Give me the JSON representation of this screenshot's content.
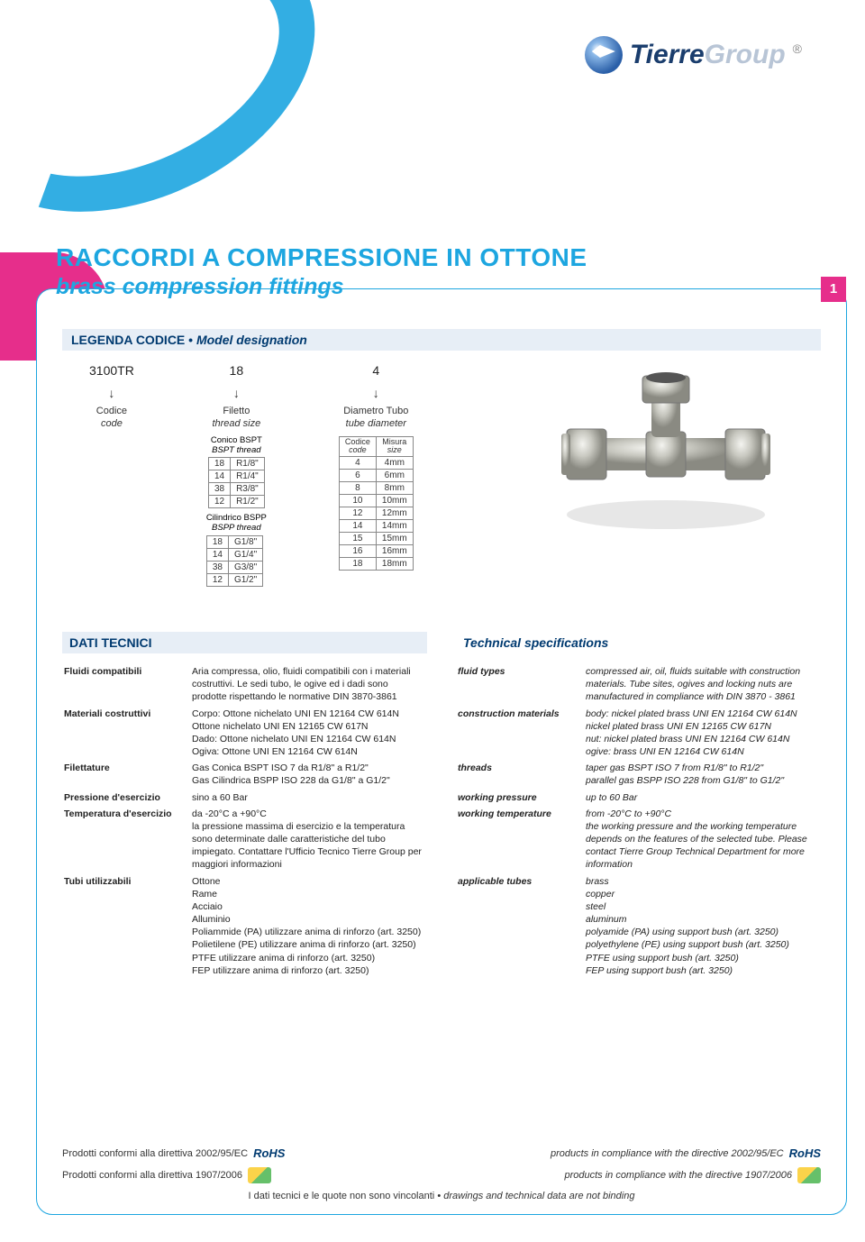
{
  "brand": {
    "name": "Tierre",
    "suffix": "Group",
    "registered": "®"
  },
  "page_number": "1",
  "title": {
    "main": "RACCORDI A COMPRESSIONE IN OTTONE",
    "sub": "brass compression fittings"
  },
  "legend": {
    "heading": "LEGENDA CODICE",
    "heading_en": "Model designation",
    "example": {
      "code": "3100TR",
      "thread": "18",
      "tube": "4"
    },
    "labels": {
      "codice": "Codice",
      "codice_en": "code",
      "filetto": "Filetto",
      "filetto_en": "thread size",
      "diametro": "Diametro Tubo",
      "diametro_en": "tube diameter"
    },
    "bspt": {
      "caption": "Conico BSPT",
      "caption_en": "BSPT thread",
      "rows": [
        [
          "18",
          "R1/8\""
        ],
        [
          "14",
          "R1/4\""
        ],
        [
          "38",
          "R3/8\""
        ],
        [
          "12",
          "R1/2\""
        ]
      ]
    },
    "bspp": {
      "caption": "Cilindrico BSPP",
      "caption_en": "BSPP thread",
      "rows": [
        [
          "18",
          "G1/8\""
        ],
        [
          "14",
          "G1/4\""
        ],
        [
          "38",
          "G3/8\""
        ],
        [
          "12",
          "G1/2\""
        ]
      ]
    },
    "tube_table": {
      "h1": "Codice",
      "h1_en": "code",
      "h2": "Misura",
      "h2_en": "size",
      "rows": [
        [
          "4",
          "4mm"
        ],
        [
          "6",
          "6mm"
        ],
        [
          "8",
          "8mm"
        ],
        [
          "10",
          "10mm"
        ],
        [
          "12",
          "12mm"
        ],
        [
          "14",
          "14mm"
        ],
        [
          "15",
          "15mm"
        ],
        [
          "16",
          "16mm"
        ],
        [
          "18",
          "18mm"
        ]
      ]
    }
  },
  "specs_it": {
    "heading": "DATI TECNICI",
    "rows": [
      [
        "Fluidi compatibili",
        "Aria compressa, olio, fluidi compatibili con i materiali costruttivi. Le sedi tubo, le ogive ed i dadi sono prodotte rispettando le normative DIN 3870-3861"
      ],
      [
        "Materiali costruttivi",
        "Corpo: Ottone nichelato UNI EN 12164 CW 614N\nOttone nichelato UNI EN 12165 CW 617N\nDado: Ottone nichelato UNI EN 12164 CW 614N\nOgiva: Ottone UNI EN 12164 CW 614N"
      ],
      [
        "Filettature",
        "Gas Conica BSPT ISO 7 da R1/8\" a R1/2\"\nGas Cilindrica BSPP ISO 228 da G1/8\" a G1/2\""
      ],
      [
        "Pressione d'esercizio",
        "sino a 60 Bar"
      ],
      [
        "Temperatura d'esercizio",
        "da -20°C a +90°C\nla pressione massima di esercizio e la temperatura sono determinate dalle caratteristiche del tubo impiegato. Contattare l'Ufficio Tecnico Tierre Group per maggiori informazioni"
      ],
      [
        "Tubi utilizzabili",
        "Ottone\nRame\nAcciaio\nAlluminio\nPoliammide (PA) utilizzare anima di rinforzo (art. 3250)\nPolietilene (PE) utilizzare anima di rinforzo (art. 3250)\nPTFE utilizzare anima di rinforzo (art. 3250)\nFEP utilizzare anima di rinforzo (art. 3250)"
      ]
    ]
  },
  "specs_en": {
    "heading": "Technical specifications",
    "rows": [
      [
        "fluid types",
        "compressed air, oil, fluids suitable with construction materials. Tube sites, ogives and locking nuts are manufactured in compliance with DIN 3870 - 3861"
      ],
      [
        "construction materials",
        "body: nickel plated brass UNI EN 12164 CW 614N\nnickel plated brass UNI EN 12165 CW 617N\nnut: nickel plated brass UNI EN 12164 CW 614N\nogive: brass UNI EN 12164 CW 614N"
      ],
      [
        "threads",
        "taper gas BSPT ISO 7 from R1/8\" to R1/2\"\nparallel gas BSPP ISO 228 from G1/8\" to G1/2\""
      ],
      [
        "working pressure",
        "up to 60 Bar"
      ],
      [
        "working temperature",
        "from -20°C to +90°C\nthe working pressure and the working temperature depends on the features of the selected tube. Please contact Tierre Group Technical Department for more information"
      ],
      [
        "applicable tubes",
        "brass\ncopper\nsteel\naluminum\npolyamide (PA) using support bush (art. 3250)\npolyethylene (PE) using support bush (art. 3250)\nPTFE using support bush (art. 3250)\nFEP using support bush (art. 3250)"
      ]
    ]
  },
  "footer": {
    "rohs_it": "Prodotti conformi alla direttiva 2002/95/EC",
    "rohs_en": "products in compliance with the directive 2002/95/EC",
    "reach_it": "Prodotti conformi alla direttiva 1907/2006",
    "reach_en": "products in compliance with the directive 1907/2006",
    "rohs_badge": "RoHS",
    "disclaimer_it": "I dati tecnici e le quote non sono vincolanti",
    "disclaimer_en": "drawings and technical data are not binding"
  },
  "colors": {
    "accent_blue": "#1da6e0",
    "accent_magenta": "#e62e8b",
    "heading_bg": "#e7eef6",
    "dark_blue": "#003a70"
  }
}
